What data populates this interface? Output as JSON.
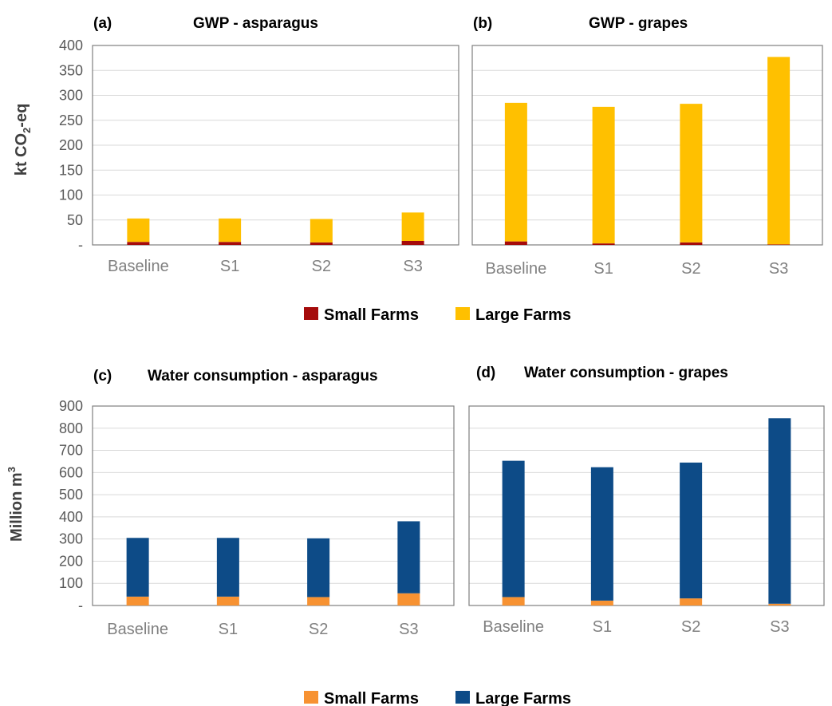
{
  "y_axis_labels": {
    "top": "kt CO₂-eq",
    "bottom": "Million m³"
  },
  "legends": {
    "top": [
      {
        "name": "Small Farms",
        "color": "#a50b0b"
      },
      {
        "name": "Large Farms",
        "color": "#ffc000"
      }
    ],
    "bottom": [
      {
        "name": "Small Farms",
        "color": "#f79232"
      },
      {
        "name": "Large Farms",
        "color": "#0d4b87"
      }
    ]
  },
  "chart_data": [
    {
      "type": "bar",
      "stacked": true,
      "panel": "(a)",
      "title": "GWP - asparagus",
      "categories": [
        "Baseline",
        "S1",
        "S2",
        "S3"
      ],
      "ylim": [
        0,
        400
      ],
      "yticks": [
        "-",
        "50",
        "100",
        "150",
        "200",
        "250",
        "300",
        "350",
        "400"
      ],
      "grid": true,
      "series": [
        {
          "name": "Small Farms",
          "color": "#a50b0b",
          "values": [
            6,
            6,
            5,
            8
          ]
        },
        {
          "name": "Large Farms",
          "color": "#ffc000",
          "values": [
            47,
            47,
            47,
            57
          ]
        }
      ]
    },
    {
      "type": "bar",
      "stacked": true,
      "panel": "(b)",
      "title": "GWP - grapes",
      "categories": [
        "Baseline",
        "S1",
        "S2",
        "S3"
      ],
      "ylim": [
        0,
        400
      ],
      "grid": true,
      "series": [
        {
          "name": "Small Farms",
          "color": "#a50b0b",
          "values": [
            7,
            3,
            5,
            1
          ]
        },
        {
          "name": "Large Farms",
          "color": "#ffc000",
          "values": [
            278,
            274,
            278,
            376
          ]
        }
      ]
    },
    {
      "type": "bar",
      "stacked": true,
      "panel": "(c)",
      "title": "Water consumption - asparagus",
      "categories": [
        "Baseline",
        "S1",
        "S2",
        "S3"
      ],
      "ylim": [
        0,
        900
      ],
      "yticks": [
        "-",
        "100",
        "200",
        "300",
        "400",
        "500",
        "600",
        "700",
        "800",
        "900"
      ],
      "grid": true,
      "series": [
        {
          "name": "Small Farms",
          "color": "#f79232",
          "values": [
            40,
            40,
            38,
            55
          ]
        },
        {
          "name": "Large Farms",
          "color": "#0d4b87",
          "values": [
            265,
            265,
            265,
            325
          ]
        }
      ]
    },
    {
      "type": "bar",
      "stacked": true,
      "panel": "(d)",
      "title": "Water consumption - grapes",
      "categories": [
        "Baseline",
        "S1",
        "S2",
        "S3"
      ],
      "ylim": [
        0,
        900
      ],
      "grid": true,
      "series": [
        {
          "name": "Small Farms",
          "color": "#f79232",
          "values": [
            38,
            22,
            32,
            8
          ]
        },
        {
          "name": "Large Farms",
          "color": "#0d4b87",
          "values": [
            615,
            602,
            613,
            837
          ]
        }
      ]
    }
  ]
}
